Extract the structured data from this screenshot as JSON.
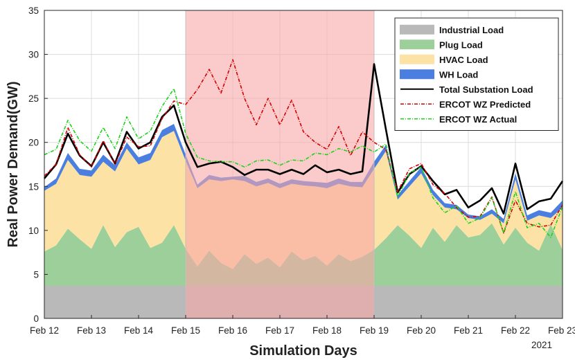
{
  "chart_data": {
    "type": "area",
    "xlabel": "Simulation Days",
    "ylabel": "Real Power Demand(GW)",
    "year_label": "2021",
    "xlim": [
      0,
      11
    ],
    "ylim": [
      0,
      35
    ],
    "x_ticks": [
      {
        "x": 0,
        "label": "Feb 12"
      },
      {
        "x": 1,
        "label": "Feb 13"
      },
      {
        "x": 2,
        "label": "Feb 14"
      },
      {
        "x": 3,
        "label": "Feb 15"
      },
      {
        "x": 4,
        "label": "Feb 16"
      },
      {
        "x": 5,
        "label": "Feb 17"
      },
      {
        "x": 6,
        "label": "Feb 18"
      },
      {
        "x": 7,
        "label": "Feb 19"
      },
      {
        "x": 8,
        "label": "Feb 20"
      },
      {
        "x": 9,
        "label": "Feb 21"
      },
      {
        "x": 10,
        "label": "Feb 22"
      },
      {
        "x": 11,
        "label": "Feb 23"
      }
    ],
    "y_ticks": [
      0,
      5,
      10,
      15,
      20,
      25,
      30,
      35
    ],
    "grid": true,
    "legend_position": "top-right",
    "highlight_span": {
      "x_start": 3,
      "x_end": 7,
      "color": "#f9a6a6"
    },
    "x": [
      0,
      0.25,
      0.5,
      0.75,
      1,
      1.25,
      1.5,
      1.75,
      2,
      2.25,
      2.5,
      2.75,
      3,
      3.25,
      3.5,
      3.75,
      4,
      4.25,
      4.5,
      4.75,
      5,
      5.25,
      5.5,
      5.75,
      6,
      6.25,
      6.5,
      6.75,
      7,
      7.25,
      7.5,
      7.75,
      8,
      8.25,
      8.5,
      8.75,
      9,
      9.25,
      9.5,
      9.75,
      10,
      10.25,
      10.5,
      10.75,
      11
    ],
    "series": [
      {
        "name": "Industrial Load",
        "kind": "area",
        "color": "#b9b9b9",
        "values": [
          3.7,
          3.7,
          3.7,
          3.7,
          3.7,
          3.7,
          3.7,
          3.7,
          3.7,
          3.7,
          3.7,
          3.7,
          3.7,
          3.7,
          3.7,
          3.7,
          3.7,
          3.7,
          3.7,
          3.7,
          3.7,
          3.7,
          3.7,
          3.7,
          3.7,
          3.7,
          3.7,
          3.7,
          3.7,
          3.7,
          3.7,
          3.7,
          3.7,
          3.7,
          3.7,
          3.7,
          3.7,
          3.7,
          3.7,
          3.7,
          3.7,
          3.7,
          3.7,
          3.7,
          3.7
        ]
      },
      {
        "name": "Plug Load",
        "kind": "area",
        "color": "#9ccf9a",
        "values": [
          7.6,
          8.3,
          10.2,
          9.0,
          7.9,
          10.6,
          8.1,
          9.8,
          10.4,
          8.0,
          8.6,
          10.6,
          7.9,
          5.9,
          7.7,
          6.3,
          5.6,
          7.3,
          6.2,
          6.9,
          5.8,
          7.6,
          6.6,
          7.1,
          6.0,
          7.3,
          6.5,
          7.0,
          7.8,
          9.1,
          10.6,
          9.4,
          8.0,
          10.3,
          8.7,
          10.6,
          9.2,
          9.5,
          10.8,
          8.4,
          10.3,
          8.6,
          7.7,
          10.7,
          7.8
        ]
      },
      {
        "name": "HVAC Load",
        "kind": "area",
        "color": "#fde2a6",
        "values": [
          14.5,
          15.3,
          18.0,
          16.3,
          16.1,
          17.8,
          16.7,
          19.3,
          17.5,
          18.0,
          20.6,
          21.3,
          17.9,
          14.8,
          15.8,
          15.6,
          15.8,
          15.6,
          15.0,
          15.4,
          14.8,
          15.3,
          15.1,
          15.0,
          14.8,
          15.3,
          15.0,
          14.9,
          17.0,
          19.0,
          13.5,
          15.0,
          16.5,
          14.0,
          12.6,
          12.4,
          11.4,
          11.2,
          11.9,
          10.8,
          15.8,
          11.1,
          11.7,
          11.4,
          12.6
        ]
      },
      {
        "name": "WH Load",
        "kind": "area",
        "color": "#4a7fe0",
        "values": [
          14.9,
          15.9,
          18.8,
          17.0,
          16.8,
          18.6,
          17.4,
          20.0,
          18.3,
          18.8,
          21.4,
          22.1,
          18.6,
          15.2,
          16.3,
          16.0,
          16.1,
          16.2,
          15.5,
          15.9,
          15.3,
          15.8,
          15.6,
          15.5,
          15.4,
          15.9,
          15.5,
          15.5,
          17.8,
          19.7,
          14.0,
          15.6,
          17.2,
          14.6,
          13.1,
          12.9,
          11.8,
          11.6,
          12.4,
          11.3,
          16.5,
          11.7,
          12.3,
          12.0,
          13.4
        ]
      },
      {
        "name": "Total Substation Load",
        "kind": "line",
        "color": "#000000",
        "values": [
          15.9,
          17.5,
          21.0,
          18.5,
          17.3,
          20.0,
          17.6,
          21.2,
          19.3,
          20.0,
          22.9,
          24.2,
          20.0,
          17.2,
          17.6,
          17.8,
          17.2,
          16.3,
          16.9,
          16.9,
          16.4,
          16.9,
          16.4,
          17.4,
          16.6,
          16.9,
          16.4,
          16.7,
          28.9,
          21.5,
          14.3,
          16.4,
          17.3,
          15.6,
          14.1,
          14.6,
          12.6,
          13.4,
          14.8,
          11.9,
          17.6,
          12.4,
          13.3,
          13.6,
          15.6
        ]
      },
      {
        "name": "ERCOT WZ Predicted",
        "kind": "line",
        "color": "#d40000",
        "dash": "5,2,1,2",
        "values": [
          16.2,
          17.5,
          21.7,
          18.6,
          17.2,
          20.2,
          17.5,
          20.6,
          19.5,
          19.6,
          22.7,
          24.7,
          24.3,
          26.0,
          28.3,
          25.6,
          29.4,
          25.0,
          22.0,
          25.0,
          22.0,
          24.8,
          21.2,
          20.0,
          19.2,
          21.8,
          18.5,
          21.2,
          20.0,
          19.2,
          14.4,
          17.0,
          17.6,
          15.2,
          14.2,
          12.6,
          11.5,
          11.6,
          13.8,
          9.7,
          13.4,
          10.8,
          10.4,
          10.6,
          12.9
        ]
      },
      {
        "name": "ERCOT WZ Actual",
        "kind": "line",
        "color": "#19d419",
        "dash": "5,2,1,2",
        "values": [
          18.6,
          19.2,
          22.5,
          20.2,
          19.0,
          21.7,
          19.3,
          22.9,
          20.4,
          21.3,
          24.1,
          26.1,
          21.0,
          18.3,
          17.9,
          17.8,
          17.8,
          17.2,
          17.9,
          18.0,
          17.4,
          18.0,
          17.9,
          18.8,
          18.6,
          19.3,
          18.9,
          19.6,
          18.9,
          19.8,
          13.8,
          16.5,
          17.2,
          13.7,
          12.0,
          12.8,
          10.8,
          11.4,
          13.7,
          9.7,
          14.4,
          10.3,
          10.8,
          9.2,
          12.7
        ]
      }
    ],
    "legend": [
      {
        "label": "Industrial Load",
        "type": "patch",
        "color": "#b9b9b9"
      },
      {
        "label": "Plug Load",
        "type": "patch",
        "color": "#9ccf9a"
      },
      {
        "label": "HVAC Load",
        "type": "patch",
        "color": "#fde2a6"
      },
      {
        "label": "WH Load",
        "type": "patch",
        "color": "#4a7fe0"
      },
      {
        "label": "Total Substation Load",
        "type": "line",
        "color": "#000000"
      },
      {
        "label": "ERCOT WZ Predicted",
        "type": "dashline",
        "color": "#d40000"
      },
      {
        "label": "ERCOT WZ Actual",
        "type": "dashline",
        "color": "#19d419"
      }
    ]
  }
}
